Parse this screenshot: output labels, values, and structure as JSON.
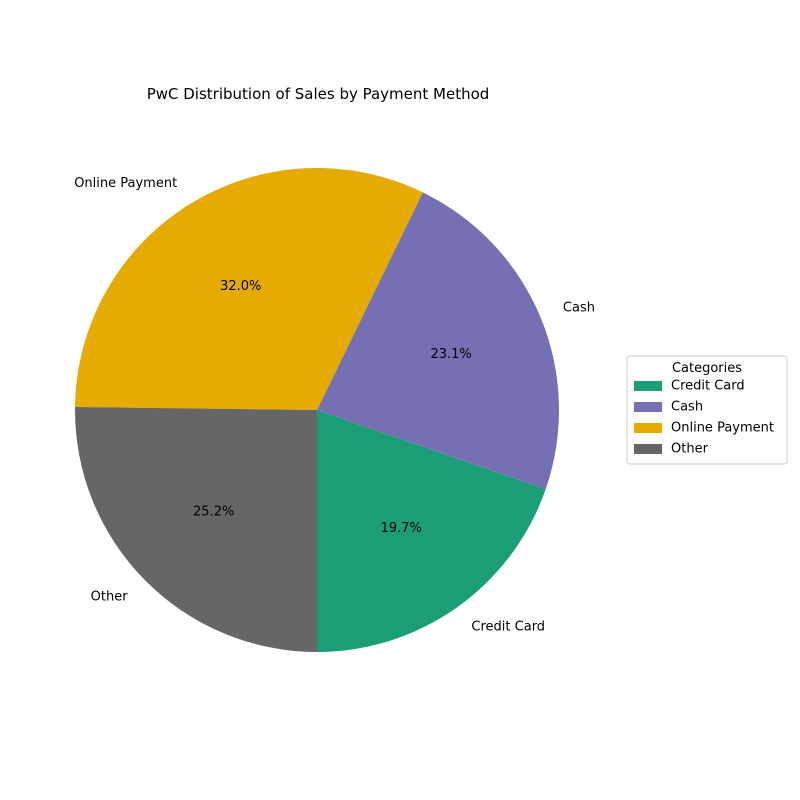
{
  "chart_data": {
    "type": "pie",
    "title": "PwC Distribution of Sales by Payment Method",
    "categories": [
      "Credit Card",
      "Cash",
      "Online Payment",
      "Other"
    ],
    "values": [
      19.7,
      23.1,
      32.0,
      25.2
    ],
    "percent_labels": [
      "19.7%",
      "23.1%",
      "32.0%",
      "25.2%"
    ],
    "colors": [
      "#1b9e77",
      "#7570b3",
      "#e6ab02",
      "#666666"
    ],
    "start_angle_deg": -90,
    "direction": "counterclockwise",
    "legend": {
      "title": "Categories",
      "placement": "right",
      "entries": [
        "Credit Card",
        "Cash",
        "Online Payment",
        "Other"
      ]
    }
  }
}
